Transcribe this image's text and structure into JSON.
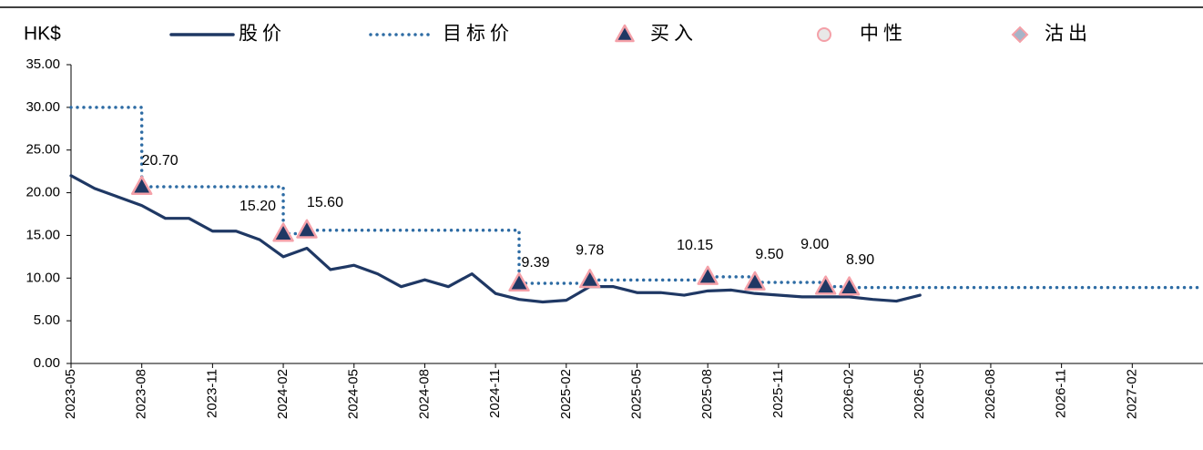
{
  "chart_data": {
    "type": "line",
    "y_label": "HK$",
    "xlim": [
      "2023-05",
      "2027-05"
    ],
    "xticks": [
      "2023-05",
      "2023-08",
      "2023-11",
      "2024-02",
      "2024-05",
      "2024-08",
      "2024-11",
      "2025-02",
      "2025-05",
      "2025-08",
      "2025-11",
      "2026-02",
      "2026-05",
      "2026-08",
      "2026-11",
      "2027-02"
    ],
    "ylim": [
      0,
      35
    ],
    "yticks": [
      {
        "value": 0,
        "label": "0.00"
      },
      {
        "value": 5,
        "label": "5.00"
      },
      {
        "value": 10,
        "label": "10.00"
      },
      {
        "value": 15,
        "label": "15.00"
      },
      {
        "value": 20,
        "label": "20.00"
      },
      {
        "value": 25,
        "label": "25.00"
      },
      {
        "value": 30,
        "label": "30.00"
      },
      {
        "value": 35,
        "label": "35.00"
      }
    ],
    "grid": false,
    "series": [
      {
        "name": "股价",
        "color": "#1f3864",
        "style": "solid",
        "x": [
          "2023-05",
          "2023-06",
          "2023-07",
          "2023-08",
          "2023-09",
          "2023-10",
          "2023-11",
          "2023-12",
          "2024-01",
          "2024-02",
          "2024-03",
          "2024-04",
          "2024-05",
          "2024-06",
          "2024-07",
          "2024-08",
          "2024-09",
          "2024-10",
          "2024-11",
          "2024-12",
          "2025-01",
          "2025-02",
          "2025-03",
          "2025-04",
          "2025-05",
          "2025-06",
          "2025-07",
          "2025-08",
          "2025-09",
          "2025-10",
          "2025-11",
          "2025-12",
          "2026-01",
          "2026-02",
          "2026-03",
          "2026-04",
          "2026-05"
        ],
        "values": [
          22.0,
          20.5,
          19.5,
          18.5,
          17.0,
          17.0,
          15.5,
          15.5,
          14.5,
          12.5,
          13.5,
          11.0,
          11.5,
          10.5,
          9.0,
          9.8,
          9.0,
          10.5,
          8.2,
          7.5,
          7.2,
          7.4,
          9.0,
          9.0,
          8.3,
          8.3,
          8.0,
          8.5,
          8.6,
          8.2,
          8.0,
          7.8,
          7.8,
          7.8,
          7.5,
          7.3,
          8.0
        ]
      },
      {
        "name": "目标价",
        "color": "#2e6ca4",
        "style": "dotted",
        "step": true,
        "x": [
          "2023-05",
          "2023-08",
          "2024-02",
          "2024-03",
          "2024-12",
          "2025-03",
          "2025-08",
          "2025-10",
          "2026-01",
          "2026-02",
          "2027-05"
        ],
        "values": [
          30,
          20.7,
          15.2,
          15.6,
          9.39,
          9.78,
          10.15,
          9.5,
          9.0,
          8.9,
          8.9
        ]
      },
      {
        "name": "买入",
        "marker": "triangle",
        "color": "#1f3864",
        "edge": "#f4a0a8",
        "x": [
          "2023-08",
          "2024-02",
          "2024-03",
          "2024-12",
          "2025-03",
          "2025-08",
          "2025-10",
          "2026-01",
          "2026-02"
        ],
        "values": [
          20.7,
          15.2,
          15.6,
          9.39,
          9.78,
          10.15,
          9.5,
          9.0,
          8.9
        ],
        "value_labels": [
          "20.70",
          "15.20",
          "15.60",
          "9.39",
          "9.78",
          "10.15",
          "9.50",
          "9.00",
          "8.90"
        ]
      },
      {
        "name": "中性",
        "marker": "circle",
        "color": "#e8e8e8",
        "edge": "#f4a0a8",
        "x": [],
        "values": []
      },
      {
        "name": "沽出",
        "marker": "diamond",
        "color": "#a6b4c8",
        "edge": "#f4a0a8",
        "x": [],
        "values": []
      }
    ]
  }
}
